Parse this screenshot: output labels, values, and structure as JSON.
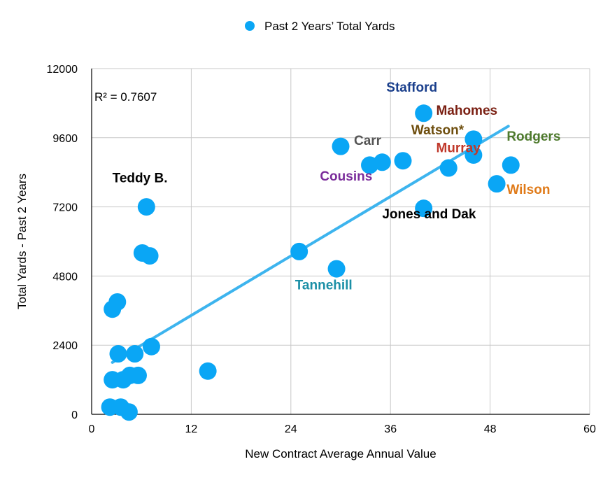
{
  "chart_data": {
    "type": "scatter",
    "legend": {
      "label": "Past 2 Years’ Total Yards",
      "placement": "top-center"
    },
    "xlabel": "New Contract Average Annual Value",
    "ylabel": "Total Yards - Past 2 Years",
    "xlim": [
      0,
      60
    ],
    "ylim": [
      0,
      12000
    ],
    "xticks": [
      0,
      12,
      24,
      36,
      48,
      60
    ],
    "yticks": [
      0,
      2400,
      4800,
      7200,
      9600,
      12000
    ],
    "grid": true,
    "colors": {
      "points": "#0aa6f5",
      "trendline": "#3db4ee",
      "grid": "#c8c8c8"
    },
    "trendline": {
      "r2_text": "R² = 0.7607",
      "x": [
        2.5,
        50.2
      ],
      "y": [
        1800,
        10000
      ]
    },
    "points": [
      {
        "x": 2.2,
        "y": 250
      },
      {
        "x": 3.5,
        "y": 250
      },
      {
        "x": 4.5,
        "y": 80
      },
      {
        "x": 2.5,
        "y": 1200
      },
      {
        "x": 3.8,
        "y": 1200
      },
      {
        "x": 4.6,
        "y": 1350
      },
      {
        "x": 5.6,
        "y": 1350
      },
      {
        "x": 3.2,
        "y": 2100
      },
      {
        "x": 5.2,
        "y": 2100
      },
      {
        "x": 7.2,
        "y": 2350
      },
      {
        "x": 2.5,
        "y": 3650
      },
      {
        "x": 3.1,
        "y": 3900
      },
      {
        "x": 6.1,
        "y": 5600
      },
      {
        "x": 7.0,
        "y": 5500
      },
      {
        "x": 6.6,
        "y": 7200
      },
      {
        "x": 14.0,
        "y": 1500
      },
      {
        "x": 25.0,
        "y": 5650
      },
      {
        "x": 29.5,
        "y": 5050
      },
      {
        "x": 30.0,
        "y": 9300
      },
      {
        "x": 33.5,
        "y": 8650
      },
      {
        "x": 35.0,
        "y": 8750
      },
      {
        "x": 37.5,
        "y": 8800
      },
      {
        "x": 40.0,
        "y": 10450
      },
      {
        "x": 40.0,
        "y": 7150
      },
      {
        "x": 43.0,
        "y": 8550
      },
      {
        "x": 46.0,
        "y": 9550
      },
      {
        "x": 46.0,
        "y": 9000
      },
      {
        "x": 48.8,
        "y": 8000
      },
      {
        "x": 50.5,
        "y": 8650
      }
    ],
    "annotations": [
      {
        "text": "Teddy B.",
        "x": 2.5,
        "y": 8050,
        "color": "#000000"
      },
      {
        "text": "Tannehill",
        "x": 24.5,
        "y": 4330,
        "color": "#1b8fa6"
      },
      {
        "text": "Cousins",
        "x": 27.5,
        "y": 8110,
        "color": "#7b2d9b"
      },
      {
        "x": 31.6,
        "y": 9350,
        "text": "Carr",
        "color": "#555555"
      },
      {
        "text": "Stafford",
        "x": 35.5,
        "y": 11200,
        "color": "#1a3f8c"
      },
      {
        "text": "Mahomes",
        "x": 41.5,
        "y": 10400,
        "color": "#7a1f12"
      },
      {
        "text": "Watson*",
        "x": 38.5,
        "y": 9720,
        "color": "#6e4e0e"
      },
      {
        "text": "Murray",
        "x": 41.5,
        "y": 9100,
        "color": "#c0392b"
      },
      {
        "text": "Rodgers",
        "x": 50.0,
        "y": 9500,
        "color": "#4e7a2d"
      },
      {
        "text": "Wilson",
        "x": 50.0,
        "y": 7650,
        "color": "#e07b1a"
      },
      {
        "text": "Jones and Dak",
        "x": 35.0,
        "y": 6800,
        "color": "#000000"
      }
    ]
  }
}
